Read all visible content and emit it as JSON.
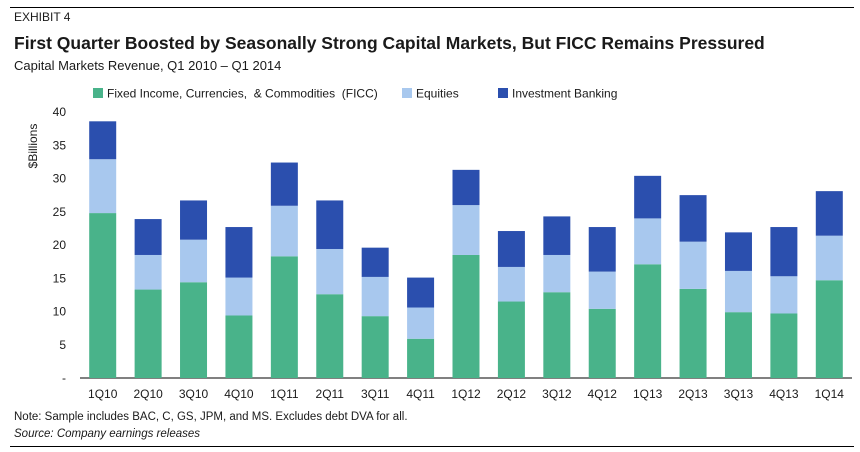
{
  "header": {
    "exhibit": "EXHIBIT 4",
    "title": "First Quarter Boosted by Seasonally Strong Capital Markets, But FICC Remains Pressured",
    "subtitle": "Capital Markets Revenue, Q1 2010 – Q1 2014"
  },
  "footer": {
    "note": "Note: Sample includes BAC, C, GS, JPM, and MS. Excludes debt DVA for all.",
    "source": "Source: Company earnings releases"
  },
  "chart_data": {
    "type": "bar",
    "stacked": true,
    "categories": [
      "1Q10",
      "2Q10",
      "3Q10",
      "4Q10",
      "1Q11",
      "2Q11",
      "3Q11",
      "4Q11",
      "1Q12",
      "2Q12",
      "3Q12",
      "4Q12",
      "1Q13",
      "2Q13",
      "3Q13",
      "4Q13",
      "1Q14"
    ],
    "series": [
      {
        "name": "Fixed Income, Currencies,  & Commodities  (FICC)",
        "color": "#49b38a",
        "values": [
          24.8,
          13.3,
          14.4,
          9.4,
          18.3,
          12.6,
          9.3,
          5.9,
          18.5,
          11.5,
          12.9,
          10.4,
          17.1,
          13.4,
          9.9,
          9.7,
          14.7
        ]
      },
      {
        "name": "Equities",
        "color": "#a8c8ee",
        "values": [
          8.1,
          5.2,
          6.4,
          5.7,
          7.6,
          6.8,
          5.9,
          4.7,
          7.5,
          5.2,
          5.6,
          5.6,
          6.9,
          7.1,
          6.2,
          5.6,
          6.7
        ]
      },
      {
        "name": "Investment Banking",
        "color": "#2b4fae",
        "values": [
          5.7,
          5.4,
          5.9,
          7.6,
          6.5,
          7.3,
          4.4,
          4.5,
          5.3,
          5.4,
          5.8,
          6.7,
          6.4,
          7.0,
          5.8,
          7.4,
          6.7
        ]
      }
    ],
    "ylabel": "$Billions",
    "ylim": [
      0,
      40
    ],
    "yticks": [
      "-",
      "5",
      "10",
      "15",
      "20",
      "25",
      "30",
      "35",
      "40"
    ],
    "legend_position": "top-left",
    "grid": false
  }
}
